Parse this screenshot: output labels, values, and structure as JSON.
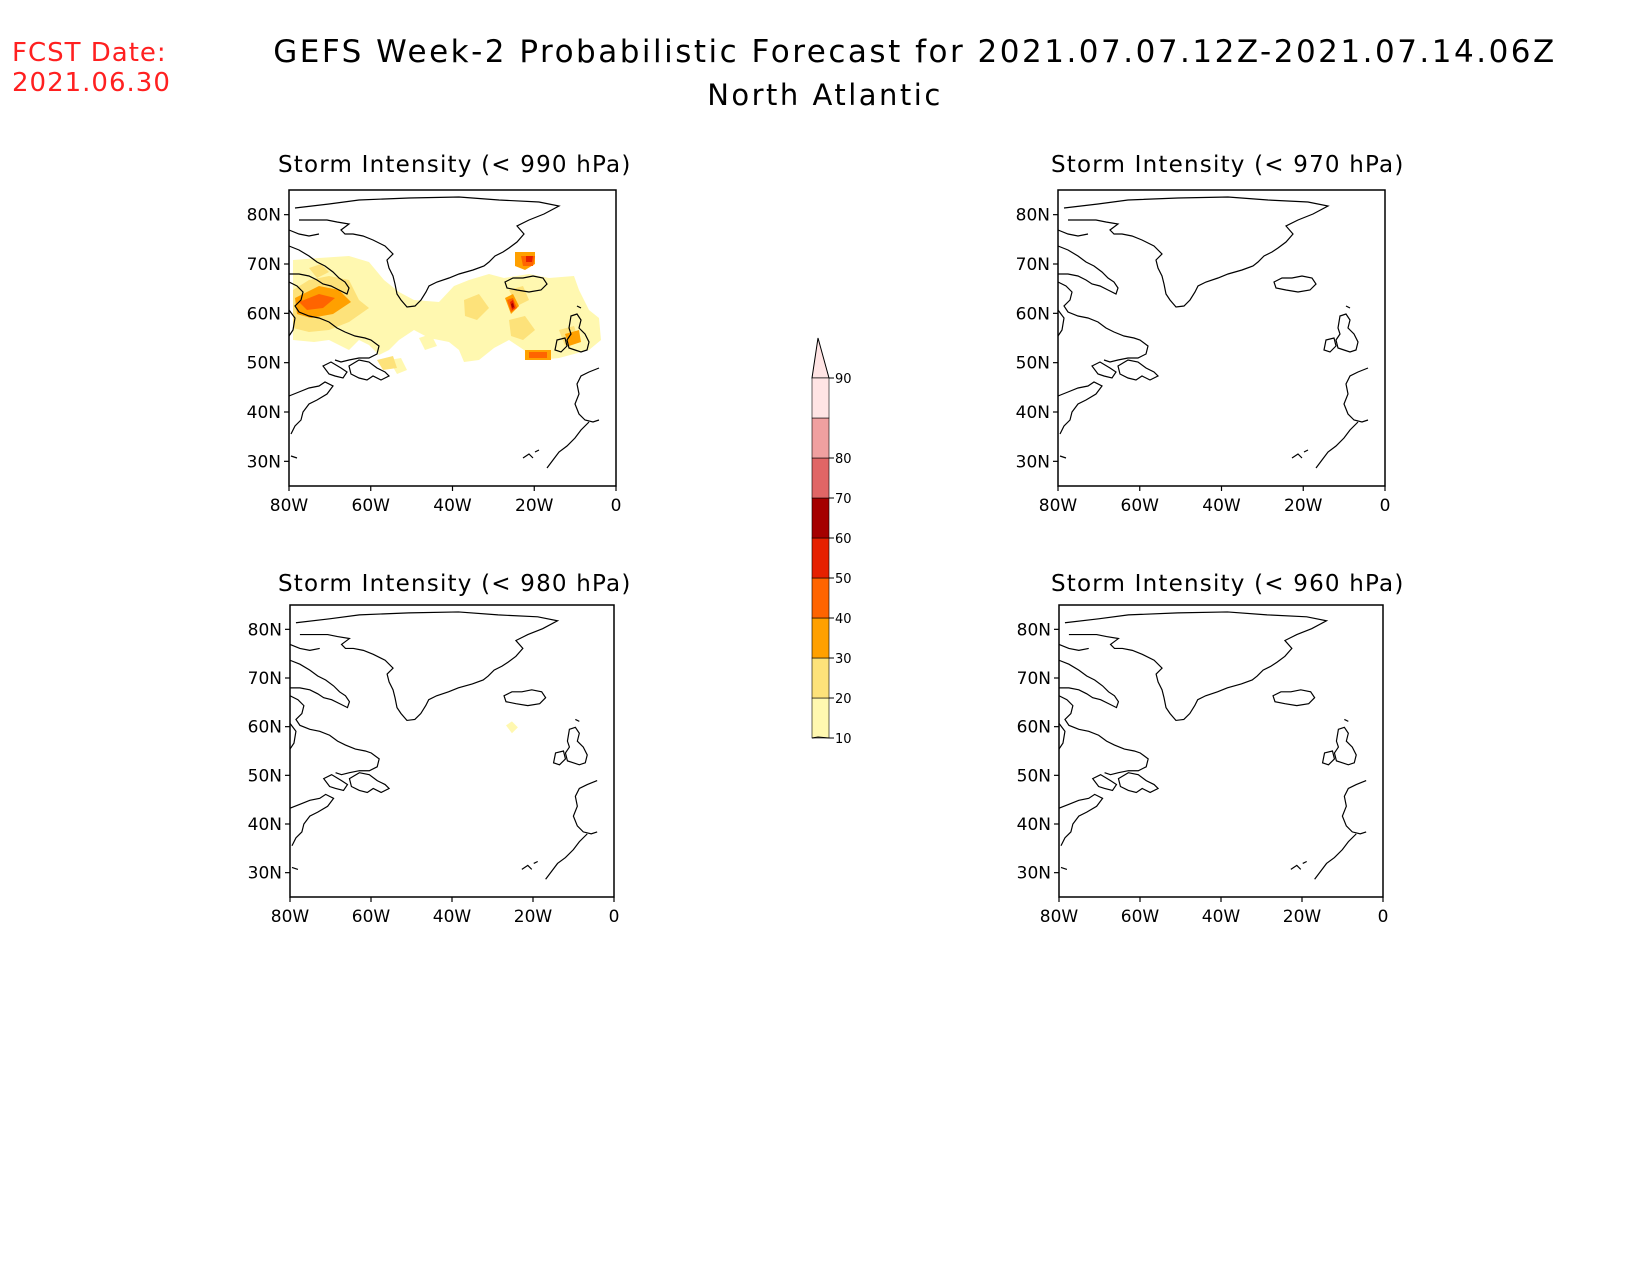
{
  "fcst_date_label": "FCST Date:",
  "fcst_date_value": "2021.06.30",
  "title": "GEFS Week-2 Probabilistic Forecast for 2021.07.07.12Z-2021.07.14.06Z",
  "region": "North Atlantic",
  "panels": [
    {
      "title": "Storm Intensity (< 990 hPa)"
    },
    {
      "title": "Storm Intensity (< 970 hPa)"
    },
    {
      "title": "Storm Intensity (< 980 hPa)"
    },
    {
      "title": "Storm Intensity (< 960 hPa)"
    }
  ],
  "axes": {
    "lon_labels": [
      "80W",
      "60W",
      "40W",
      "20W",
      "0"
    ],
    "lat_labels": [
      "80N",
      "70N",
      "60N",
      "50N",
      "40N",
      "30N"
    ]
  },
  "colorbar": {
    "levels": [
      "10",
      "20",
      "30",
      "40",
      "50",
      "60",
      "70",
      "80",
      "90"
    ],
    "colors": [
      "#fff8b0",
      "#fde27a",
      "#ffa000",
      "#ff6400",
      "#e62000",
      "#a50000",
      "#e06666",
      "#f0a0a0",
      "#ffe4e4",
      "#ffe4e4"
    ]
  },
  "colors": {
    "fcst": "#ff2020"
  }
}
